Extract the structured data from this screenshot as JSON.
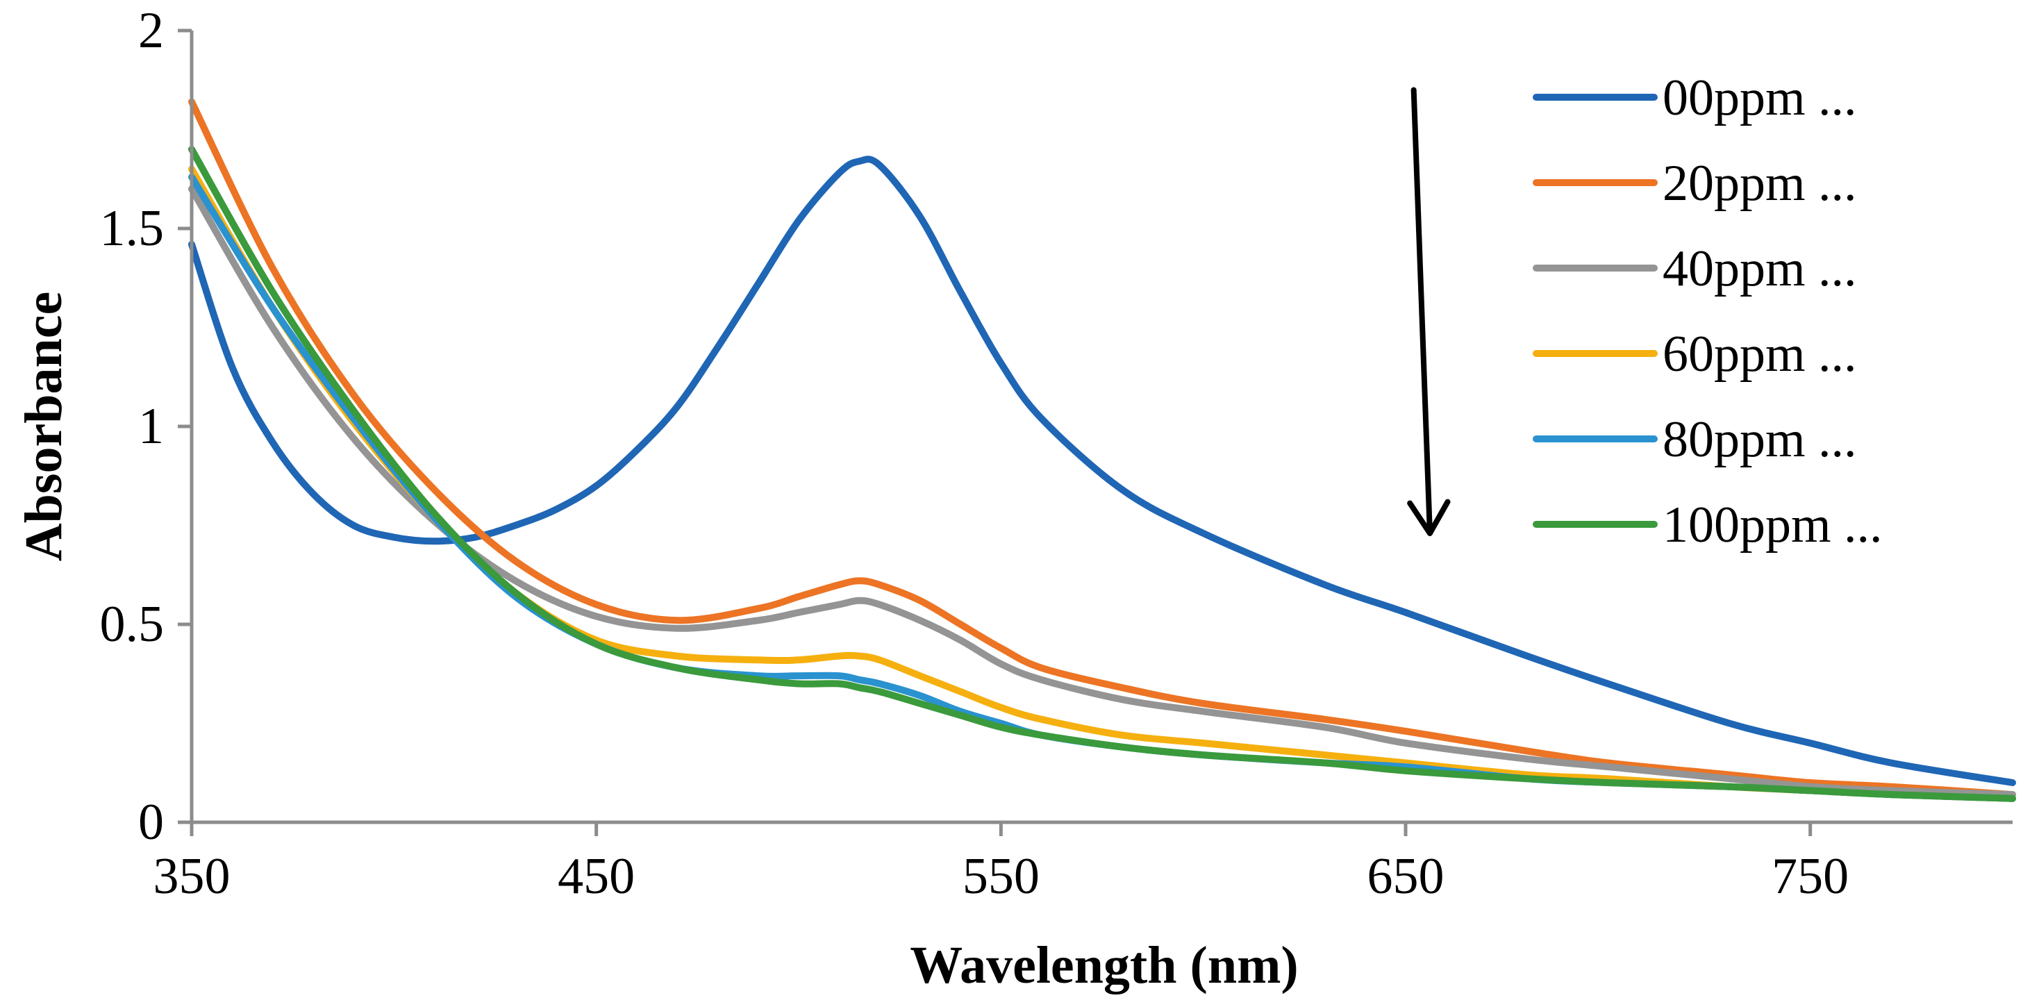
{
  "chart_data": {
    "type": "line",
    "title": "",
    "xlabel": "Wavelength (nm)",
    "ylabel": "Absorbance",
    "xlim": [
      350,
      800
    ],
    "ylim": [
      0,
      2
    ],
    "xticks": [
      350,
      450,
      550,
      650,
      750
    ],
    "xtick_labels": [
      "350",
      "450",
      "550",
      "650",
      "750"
    ],
    "yticks": [
      0,
      0.5,
      1,
      1.5,
      2
    ],
    "ytick_labels": [
      "0",
      "0.5",
      "1",
      "1.5",
      "2"
    ],
    "grid": false,
    "legend_position": "top-right",
    "annotations": [
      {
        "type": "arrow",
        "direction": "down",
        "from": [
          652,
          1.85
        ],
        "to": [
          656,
          0.73
        ]
      }
    ],
    "series": [
      {
        "name": "00ppm ...",
        "color": "#1f66b5",
        "x": [
          350,
          360,
          370,
          380,
          390,
          400,
          410,
          420,
          430,
          440,
          450,
          460,
          470,
          480,
          490,
          500,
          510,
          515,
          520,
          530,
          540,
          550,
          560,
          580,
          600,
          630,
          650,
          680,
          700,
          730,
          750,
          770,
          800
        ],
        "y": [
          1.46,
          1.15,
          0.96,
          0.83,
          0.75,
          0.72,
          0.71,
          0.72,
          0.75,
          0.79,
          0.85,
          0.94,
          1.05,
          1.2,
          1.36,
          1.52,
          1.64,
          1.67,
          1.66,
          1.53,
          1.34,
          1.16,
          1.02,
          0.84,
          0.73,
          0.6,
          0.53,
          0.42,
          0.35,
          0.25,
          0.2,
          0.15,
          0.1
        ]
      },
      {
        "name": "20ppm ...",
        "color": "#ec7424",
        "x": [
          350,
          370,
          390,
          410,
          430,
          450,
          470,
          490,
          500,
          510,
          515,
          520,
          530,
          540,
          550,
          560,
          580,
          600,
          630,
          650,
          680,
          700,
          730,
          750,
          770,
          800
        ],
        "y": [
          1.82,
          1.4,
          1.08,
          0.84,
          0.66,
          0.55,
          0.51,
          0.54,
          0.57,
          0.6,
          0.61,
          0.6,
          0.56,
          0.5,
          0.44,
          0.39,
          0.34,
          0.3,
          0.26,
          0.23,
          0.18,
          0.15,
          0.12,
          0.1,
          0.09,
          0.07
        ]
      },
      {
        "name": "40ppm ...",
        "color": "#949494",
        "x": [
          350,
          370,
          390,
          410,
          430,
          450,
          470,
          490,
          500,
          510,
          515,
          520,
          530,
          540,
          550,
          560,
          580,
          600,
          630,
          650,
          680,
          700,
          730,
          750,
          770,
          800
        ],
        "y": [
          1.6,
          1.25,
          0.97,
          0.76,
          0.61,
          0.52,
          0.49,
          0.51,
          0.53,
          0.55,
          0.56,
          0.55,
          0.51,
          0.46,
          0.4,
          0.36,
          0.31,
          0.28,
          0.24,
          0.2,
          0.16,
          0.14,
          0.11,
          0.09,
          0.08,
          0.07
        ]
      },
      {
        "name": "60ppm ...",
        "color": "#f5b00f",
        "x": [
          350,
          370,
          390,
          410,
          430,
          450,
          470,
          490,
          500,
          510,
          515,
          520,
          530,
          540,
          550,
          560,
          580,
          600,
          630,
          650,
          680,
          700,
          730,
          750,
          770,
          800
        ],
        "y": [
          1.65,
          1.3,
          1.01,
          0.77,
          0.58,
          0.46,
          0.42,
          0.41,
          0.41,
          0.42,
          0.42,
          0.41,
          0.37,
          0.33,
          0.29,
          0.26,
          0.22,
          0.2,
          0.17,
          0.15,
          0.12,
          0.11,
          0.09,
          0.08,
          0.07,
          0.06
        ]
      },
      {
        "name": "80ppm ...",
        "color": "#2a92cf",
        "x": [
          350,
          370,
          390,
          410,
          430,
          450,
          470,
          490,
          500,
          510,
          515,
          520,
          530,
          540,
          550,
          560,
          580,
          600,
          630,
          650,
          680,
          700,
          730,
          750,
          770,
          800
        ],
        "y": [
          1.63,
          1.3,
          1.02,
          0.77,
          0.57,
          0.45,
          0.39,
          0.37,
          0.37,
          0.37,
          0.36,
          0.35,
          0.32,
          0.28,
          0.25,
          0.22,
          0.19,
          0.17,
          0.15,
          0.14,
          0.11,
          0.1,
          0.09,
          0.08,
          0.07,
          0.06
        ]
      },
      {
        "name": "100ppm ...",
        "color": "#3a9a3c",
        "x": [
          350,
          370,
          390,
          410,
          430,
          450,
          470,
          490,
          500,
          510,
          515,
          520,
          530,
          540,
          550,
          560,
          580,
          600,
          630,
          650,
          680,
          700,
          730,
          750,
          770,
          800
        ],
        "y": [
          1.7,
          1.34,
          1.04,
          0.78,
          0.58,
          0.45,
          0.39,
          0.36,
          0.35,
          0.35,
          0.34,
          0.33,
          0.3,
          0.27,
          0.24,
          0.22,
          0.19,
          0.17,
          0.15,
          0.13,
          0.11,
          0.1,
          0.09,
          0.08,
          0.07,
          0.06
        ]
      }
    ]
  }
}
